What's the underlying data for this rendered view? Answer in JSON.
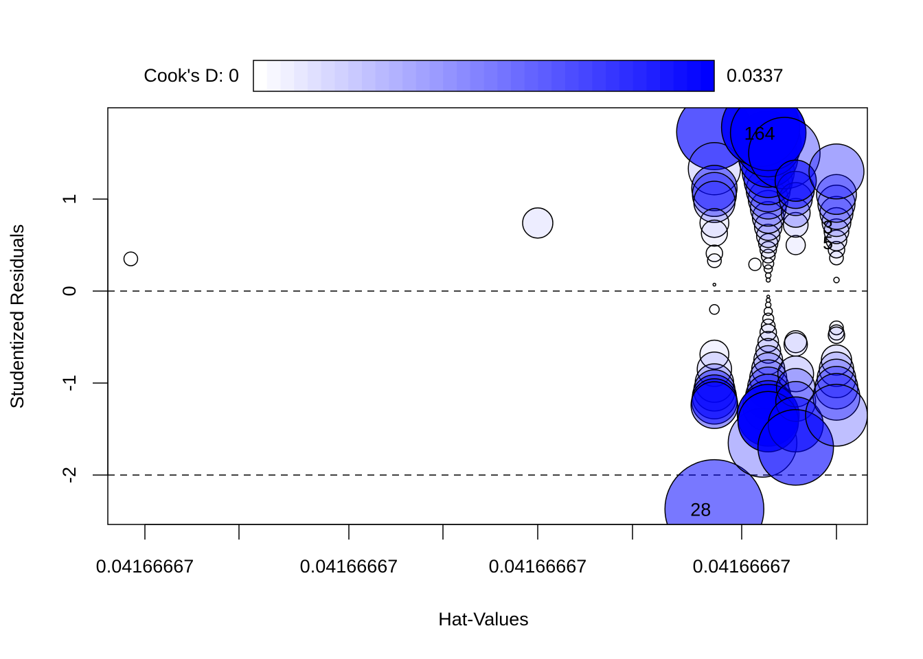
{
  "chart_data": {
    "type": "scatter",
    "title": "",
    "xlabel": "Hat-Values",
    "ylabel": "Studentized Residuals",
    "x_tick_labels": [
      "0.04166667",
      "0.04166667",
      "0.04166667",
      "0.04166667"
    ],
    "y_ticks": [
      -2,
      -1,
      0,
      1
    ],
    "ylim": [
      -2.54,
      1.99
    ],
    "reference_lines_y": [
      -2,
      0
    ],
    "legend": {
      "label_min": "Cook's D: 0",
      "label_max": "0.0337",
      "min": 0,
      "max": 0.0337,
      "color_low": "#ffffff",
      "color_high": "#0000ff",
      "placement": "top"
    },
    "point_fields": [
      "x_tick_position",
      "studentized_residual",
      "cooks_d",
      "size"
    ],
    "points": [
      [
        -0.15,
        0.35,
        0,
        1.0
      ],
      [
        4,
        0.74,
        0.0024,
        2.2
      ],
      [
        5.75,
        1.73,
        0.0219,
        5.5
      ],
      [
        5.75,
        1.33,
        0.004,
        3.8
      ],
      [
        5.75,
        1.12,
        0.0152,
        3.3
      ],
      [
        5.75,
        1.05,
        0.0101,
        3.2
      ],
      [
        5.75,
        0.97,
        0.0067,
        3.0
      ],
      [
        5.75,
        0.74,
        0.0017,
        2.1
      ],
      [
        5.75,
        0.63,
        0.0017,
        1.9
      ],
      [
        5.75,
        0.41,
        0.0007,
        1.2
      ],
      [
        5.75,
        0.33,
        0.0007,
        1.0
      ],
      [
        5.75,
        0.07,
        0,
        0.2
      ],
      [
        5.75,
        -0.2,
        0.0003,
        0.7
      ],
      [
        5.75,
        -0.69,
        0.0017,
        2.1
      ],
      [
        5.75,
        -0.85,
        0.0034,
        2.5
      ],
      [
        5.75,
        -1.0,
        0.0067,
        2.8
      ],
      [
        5.75,
        -1.08,
        0.0135,
        3.0
      ],
      [
        5.75,
        -1.15,
        0.0169,
        3.2
      ],
      [
        5.75,
        -1.2,
        0.0185,
        3.3
      ],
      [
        5.75,
        -1.24,
        0.0135,
        3.4
      ],
      [
        5.75,
        -2.37,
        0.0179,
        7.2
      ],
      [
        6.14,
        0.29,
        0.0003,
        0.9
      ],
      [
        6.28,
        0.12,
        0,
        0.3
      ],
      [
        6.28,
        0.17,
        0,
        0.4
      ],
      [
        6.28,
        0.24,
        0.0003,
        0.6
      ],
      [
        6.28,
        0.3,
        0.0007,
        0.8
      ],
      [
        6.28,
        0.38,
        0.001,
        1.0
      ],
      [
        6.28,
        0.45,
        0.0017,
        1.2
      ],
      [
        6.28,
        0.52,
        0.0024,
        1.4
      ],
      [
        6.28,
        0.6,
        0.003,
        1.7
      ],
      [
        6.28,
        0.7,
        0.004,
        2.0
      ],
      [
        6.28,
        0.8,
        0.0051,
        2.3
      ],
      [
        6.28,
        0.9,
        0.0067,
        2.6
      ],
      [
        6.28,
        1.0,
        0.0084,
        2.9
      ],
      [
        6.28,
        1.1,
        0.0101,
        3.2
      ],
      [
        6.28,
        1.2,
        0.0135,
        3.5
      ],
      [
        6.28,
        1.3,
        0.0169,
        3.8
      ],
      [
        6.28,
        1.45,
        0.0236,
        4.3
      ],
      [
        6.28,
        1.6,
        0.027,
        4.8
      ],
      [
        6.2,
        1.78,
        0.0303,
        5.7
      ],
      [
        6.28,
        1.72,
        0.032,
        5.5
      ],
      [
        6.28,
        -0.06,
        0,
        0.2
      ],
      [
        6.28,
        -0.1,
        0,
        0.3
      ],
      [
        6.28,
        -0.15,
        0,
        0.4
      ],
      [
        6.28,
        -0.22,
        0.0003,
        0.6
      ],
      [
        6.28,
        -0.3,
        0.0007,
        0.8
      ],
      [
        6.28,
        -0.38,
        0.001,
        1.0
      ],
      [
        6.28,
        -0.45,
        0.0017,
        1.2
      ],
      [
        6.28,
        -0.55,
        0.0024,
        1.5
      ],
      [
        6.28,
        -0.65,
        0.0034,
        1.8
      ],
      [
        6.28,
        -0.75,
        0.0044,
        2.1
      ],
      [
        6.28,
        -0.85,
        0.0057,
        2.4
      ],
      [
        6.28,
        -0.95,
        0.0074,
        2.7
      ],
      [
        6.28,
        -1.05,
        0.0101,
        3.0
      ],
      [
        6.28,
        -1.15,
        0.0135,
        3.3
      ],
      [
        6.28,
        -1.25,
        0.0185,
        3.7
      ],
      [
        6.22,
        -1.65,
        0.0094,
        5.0
      ],
      [
        6.28,
        -1.35,
        0.0303,
        4.5
      ],
      [
        6.28,
        -1.42,
        0.0286,
        4.4
      ],
      [
        6.45,
        1.5,
        0.0118,
        5.2
      ],
      [
        6.57,
        0.5,
        0.0017,
        1.4
      ],
      [
        6.57,
        0.72,
        0.0034,
        1.8
      ],
      [
        6.57,
        0.85,
        0.0067,
        2.1
      ],
      [
        6.57,
        1.0,
        0.0101,
        2.4
      ],
      [
        6.57,
        1.1,
        0.0152,
        2.7
      ],
      [
        6.57,
        1.2,
        0.0202,
        3.0
      ],
      [
        6.57,
        -0.55,
        0.0017,
        1.6
      ],
      [
        6.57,
        -0.58,
        0.0024,
        1.7
      ],
      [
        6.57,
        -0.9,
        0.0051,
        2.6
      ],
      [
        6.57,
        -1.05,
        0.0084,
        2.8
      ],
      [
        6.57,
        -1.2,
        0.0101,
        2.9
      ],
      [
        6.57,
        -1.45,
        0.0202,
        4.0
      ],
      [
        6.57,
        -1.7,
        0.0202,
        5.5
      ],
      [
        7,
        0.12,
        0,
        0.4
      ],
      [
        7,
        0.36,
        0.001,
        1.0
      ],
      [
        7,
        0.45,
        0.0017,
        1.2
      ],
      [
        7,
        0.55,
        0.0024,
        1.5
      ],
      [
        7,
        0.65,
        0.0034,
        1.8
      ],
      [
        7,
        0.75,
        0.004,
        2.1
      ],
      [
        7,
        0.85,
        0.0067,
        2.4
      ],
      [
        7,
        0.95,
        0.0084,
        2.7
      ],
      [
        7,
        1.05,
        0.0101,
        2.9
      ],
      [
        7,
        1.3,
        0.0118,
        4.0
      ],
      [
        7,
        -0.4,
        0.001,
        1.0
      ],
      [
        7,
        -0.45,
        0.0013,
        1.1
      ],
      [
        7,
        -0.48,
        0.0017,
        1.2
      ],
      [
        7,
        -0.75,
        0.0034,
        2.2
      ],
      [
        7,
        -0.85,
        0.0051,
        2.5
      ],
      [
        7,
        -0.95,
        0.0067,
        2.8
      ],
      [
        7,
        -1.05,
        0.0101,
        3.1
      ],
      [
        7,
        -1.15,
        0.0118,
        3.4
      ],
      [
        7,
        -1.35,
        0.0084,
        4.5
      ]
    ],
    "point_labels": [
      {
        "text": "164",
        "x_tick_position": 6.28,
        "studentized_residual": 1.72
      },
      {
        "text": "28",
        "x_tick_position": 5.75,
        "studentized_residual": -2.37
      },
      {
        "text": "3",
        "x_tick_position": 7,
        "studentized_residual": 0.7
      },
      {
        "text": "5",
        "x_tick_position": 7,
        "studentized_residual": 0.53
      }
    ]
  }
}
